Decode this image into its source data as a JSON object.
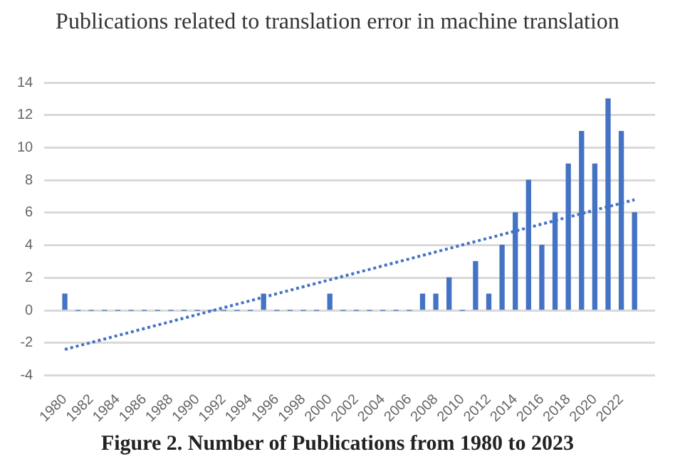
{
  "chart_data": {
    "type": "bar",
    "title": "Publications related to translation error in machine translation",
    "x": [
      1980,
      1981,
      1982,
      1983,
      1984,
      1985,
      1986,
      1987,
      1988,
      1989,
      1990,
      1991,
      1992,
      1993,
      1994,
      1995,
      1996,
      1997,
      1998,
      1999,
      2000,
      2001,
      2002,
      2003,
      2004,
      2005,
      2006,
      2007,
      2008,
      2009,
      2010,
      2011,
      2012,
      2013,
      2014,
      2015,
      2016,
      2017,
      2018,
      2019,
      2020,
      2021,
      2022,
      2023
    ],
    "series": [
      {
        "color": "#4472c4",
        "values": [
          1,
          0,
          0,
          0,
          0,
          0,
          0,
          0,
          0,
          0,
          0,
          0,
          0,
          0,
          0,
          1,
          0,
          0,
          0,
          0,
          1,
          0,
          0,
          0,
          0,
          0,
          0,
          1,
          1,
          2,
          0,
          3,
          1,
          4,
          6,
          8,
          4,
          6,
          9,
          11,
          9,
          13,
          11,
          6
        ]
      },
      {
        "type": "line",
        "color": "#4472c4",
        "line_style": "dotted",
        "marker": "none",
        "x": [
          1980,
          2023
        ],
        "values": [
          -2.4,
          6.8
        ]
      }
    ],
    "xlim": [
      1979.5,
      2023.5
    ],
    "xticks": [
      1980,
      1982,
      1984,
      1986,
      1988,
      1990,
      1992,
      1994,
      1996,
      1998,
      2000,
      2002,
      2004,
      2006,
      2008,
      2010,
      2012,
      2014,
      2016,
      2018,
      2020,
      2022
    ],
    "ylim": [
      -4,
      14
    ],
    "yticks": [
      -4,
      -2,
      0,
      2,
      4,
      6,
      8,
      10,
      12,
      14
    ],
    "grid": "y",
    "legend": false,
    "annotations": [
      "Figure 2. Number of Publications from 1980 to 2023"
    ]
  }
}
